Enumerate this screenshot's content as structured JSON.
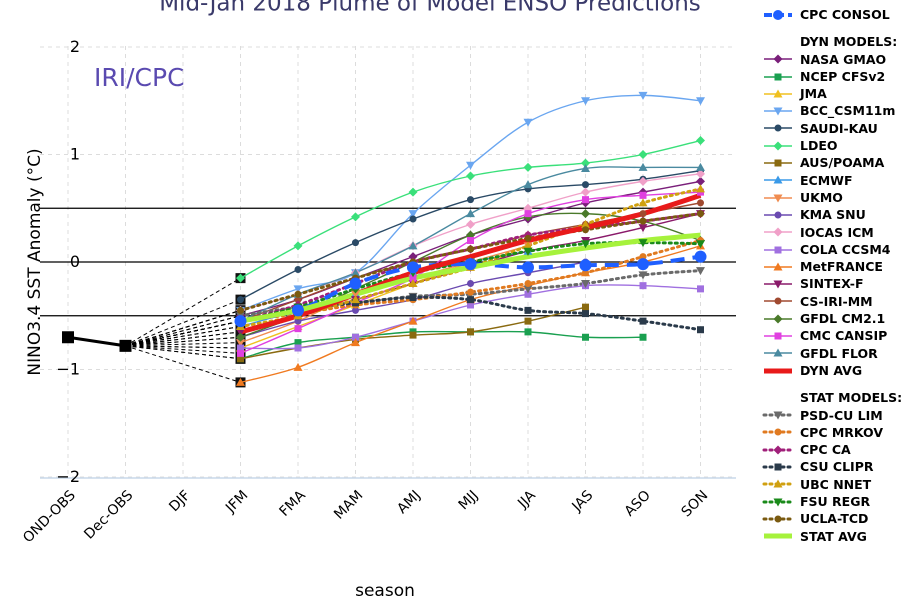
{
  "chart_data": {
    "type": "line",
    "title": "Mid-Jan 2018 Plume of Model ENSO Predictions",
    "watermark": "IRI/CPC",
    "xlabel": "season",
    "ylabel": "NINO3.4 SST Anomaly (°C)",
    "categories": [
      "OND-OBS",
      "Dec-OBS",
      "DJF",
      "JFM",
      "FMA",
      "MAM",
      "AMJ",
      "MJJ",
      "JJA",
      "JAS",
      "ASO",
      "SON"
    ],
    "ylim": [
      -2,
      2
    ],
    "yticks": [
      -2,
      -1,
      0,
      1,
      2
    ],
    "reference_lines": [
      0.5,
      0,
      -0.5
    ],
    "grid": true,
    "legend_position": "right",
    "observed": {
      "name": "OBS",
      "x": [
        "OND-OBS",
        "Dec-OBS"
      ],
      "values": [
        -0.7,
        -0.78
      ],
      "color": "#000000"
    },
    "legend_headers": {
      "dyn": "DYN MODELS:",
      "stat": "STAT MODELS:"
    },
    "series": [
      {
        "name": "CPC CONSOL",
        "group": "consol",
        "color": "#1f5fff",
        "style": "dashed",
        "marker": "circle",
        "x": [
          "JFM",
          "FMA",
          "MAM",
          "AMJ",
          "MJJ",
          "JJA",
          "JAS",
          "ASO",
          "SON"
        ],
        "values": [
          -0.55,
          -0.45,
          -0.2,
          -0.05,
          -0.02,
          -0.05,
          -0.03,
          -0.02,
          0.05
        ]
      },
      {
        "name": "NASA GMAO",
        "group": "dyn",
        "color": "#7a1f7a",
        "style": "solid",
        "marker": "diamond",
        "x": [
          "JFM",
          "FMA",
          "MAM",
          "AMJ",
          "MJJ",
          "JJA",
          "JAS",
          "ASO",
          "SON"
        ],
        "values": [
          -0.5,
          -0.35,
          -0.15,
          0.05,
          0.25,
          0.4,
          0.55,
          0.65,
          0.75
        ]
      },
      {
        "name": "NCEP CFSv2",
        "group": "dyn",
        "color": "#1aa050",
        "style": "solid",
        "marker": "square",
        "x": [
          "JFM",
          "FMA",
          "MAM",
          "AMJ",
          "MJJ",
          "JJA",
          "JAS",
          "ASO"
        ],
        "values": [
          -0.9,
          -0.75,
          -0.7,
          -0.65,
          -0.65,
          -0.65,
          -0.7,
          -0.7
        ]
      },
      {
        "name": "JMA",
        "group": "dyn",
        "color": "#f0c020",
        "style": "solid",
        "marker": "triangle-up",
        "x": [
          "JFM",
          "FMA",
          "MAM",
          "AMJ",
          "MJJ"
        ],
        "values": [
          -0.8,
          -0.6,
          -0.4,
          -0.2,
          0.0
        ]
      },
      {
        "name": "BCC_CSM11m",
        "group": "dyn",
        "color": "#6aa6f0",
        "style": "solid",
        "marker": "triangle-down",
        "x": [
          "JFM",
          "FMA",
          "MAM",
          "AMJ",
          "MJJ",
          "JJA",
          "JAS",
          "ASO",
          "SON"
        ],
        "values": [
          -0.45,
          -0.25,
          -0.1,
          0.45,
          0.9,
          1.3,
          1.5,
          1.55,
          1.5
        ]
      },
      {
        "name": "SAUDI-KAU",
        "group": "dyn",
        "color": "#2a4a66",
        "style": "solid",
        "marker": "circle",
        "x": [
          "JFM",
          "FMA",
          "MAM",
          "AMJ",
          "MJJ",
          "JJA",
          "JAS",
          "ASO",
          "SON"
        ],
        "values": [
          -0.35,
          -0.07,
          0.18,
          0.4,
          0.58,
          0.68,
          0.72,
          0.77,
          0.85
        ]
      },
      {
        "name": "LDEO",
        "group": "dyn",
        "color": "#3ae07a",
        "style": "solid",
        "marker": "diamond",
        "x": [
          "JFM",
          "FMA",
          "MAM",
          "AMJ",
          "MJJ",
          "JJA",
          "JAS",
          "ASO",
          "SON"
        ],
        "values": [
          -0.15,
          0.15,
          0.42,
          0.65,
          0.8,
          0.88,
          0.92,
          1.0,
          1.13
        ]
      },
      {
        "name": "AUS/POAMA",
        "group": "dyn",
        "color": "#8a6a10",
        "style": "solid",
        "marker": "square",
        "x": [
          "JFM",
          "FMA",
          "MAM",
          "AMJ",
          "MJJ",
          "JJA",
          "JAS"
        ],
        "values": [
          -0.9,
          -0.8,
          -0.72,
          -0.68,
          -0.65,
          -0.55,
          -0.42
        ]
      },
      {
        "name": "ECMWF",
        "group": "dyn",
        "color": "#3a9ae8",
        "style": "solid",
        "marker": "triangle-up",
        "x": [
          "JFM",
          "FMA",
          "MAM",
          "AMJ",
          "MJJ",
          "JJA"
        ],
        "values": [
          -0.6,
          -0.45,
          -0.3,
          -0.1,
          0.0,
          0.1
        ]
      },
      {
        "name": "UKMO",
        "group": "dyn",
        "color": "#f08c50",
        "style": "solid",
        "marker": "triangle-down",
        "x": [
          "JFM",
          "FMA",
          "MAM",
          "AMJ",
          "MJJ",
          "JJA"
        ],
        "values": [
          -0.75,
          -0.55,
          -0.3,
          -0.15,
          0.0,
          0.15
        ]
      },
      {
        "name": "KMA SNU",
        "group": "dyn",
        "color": "#6a4ab0",
        "style": "solid",
        "marker": "circle",
        "x": [
          "JFM",
          "FMA",
          "MAM",
          "AMJ",
          "MJJ",
          "JJA",
          "JAS"
        ],
        "values": [
          -0.7,
          -0.55,
          -0.45,
          -0.35,
          -0.2,
          -0.1,
          0.0
        ]
      },
      {
        "name": "IOCAS ICM",
        "group": "dyn",
        "color": "#f0a0c8",
        "style": "solid",
        "marker": "diamond",
        "x": [
          "JFM",
          "FMA",
          "MAM",
          "AMJ",
          "MJJ",
          "JJA",
          "JAS",
          "ASO",
          "SON"
        ],
        "values": [
          -0.45,
          -0.3,
          -0.1,
          0.15,
          0.35,
          0.5,
          0.65,
          0.75,
          0.82
        ]
      },
      {
        "name": "COLA CCSM4",
        "group": "dyn",
        "color": "#a070e0",
        "style": "solid",
        "marker": "square",
        "x": [
          "JFM",
          "FMA",
          "MAM",
          "AMJ",
          "MJJ",
          "JJA",
          "JAS",
          "ASO",
          "SON"
        ],
        "values": [
          -0.8,
          -0.8,
          -0.7,
          -0.55,
          -0.4,
          -0.3,
          -0.22,
          -0.22,
          -0.25
        ]
      },
      {
        "name": "MetFRANCE",
        "group": "dyn",
        "color": "#f07a20",
        "style": "solid",
        "marker": "triangle-up",
        "x": [
          "JFM",
          "FMA",
          "MAM",
          "AMJ",
          "MJJ",
          "JJA",
          "JAS",
          "ASO",
          "SON"
        ],
        "values": [
          -1.12,
          -0.98,
          -0.75,
          -0.55,
          -0.35,
          -0.22,
          -0.1,
          0.0,
          0.15
        ]
      },
      {
        "name": "SINTEX-F",
        "group": "dyn",
        "color": "#8a1a6a",
        "style": "solid",
        "marker": "triangle-down",
        "x": [
          "JFM",
          "FMA",
          "MAM",
          "AMJ",
          "MJJ",
          "JJA",
          "JAS",
          "ASO",
          "SON"
        ],
        "values": [
          -0.65,
          -0.5,
          -0.35,
          -0.2,
          -0.05,
          0.1,
          0.2,
          0.32,
          0.45
        ]
      },
      {
        "name": "CS-IRI-MM",
        "group": "dyn",
        "color": "#a04a30",
        "style": "solid",
        "marker": "circle",
        "x": [
          "JFM",
          "FMA",
          "MAM",
          "AMJ",
          "MJJ",
          "JJA",
          "JAS",
          "ASO",
          "SON"
        ],
        "values": [
          -0.55,
          -0.35,
          -0.15,
          0.0,
          0.12,
          0.25,
          0.35,
          0.45,
          0.55
        ]
      },
      {
        "name": "GFDL CM2.1",
        "group": "dyn",
        "color": "#4a7a2a",
        "style": "solid",
        "marker": "diamond",
        "x": [
          "JFM",
          "FMA",
          "MAM",
          "AMJ",
          "MJJ",
          "JJA",
          "JAS",
          "ASO",
          "SON"
        ],
        "values": [
          -0.7,
          -0.5,
          -0.25,
          0.0,
          0.25,
          0.42,
          0.45,
          0.38,
          0.2
        ]
      },
      {
        "name": "CMC CANSIP",
        "group": "dyn",
        "color": "#e040e0",
        "style": "solid",
        "marker": "square",
        "x": [
          "JFM",
          "FMA",
          "MAM",
          "AMJ",
          "MJJ",
          "JJA",
          "JAS",
          "ASO",
          "SON"
        ],
        "values": [
          -0.85,
          -0.62,
          -0.38,
          -0.15,
          0.2,
          0.45,
          0.58,
          0.62,
          0.65
        ]
      },
      {
        "name": "GFDL FLOR",
        "group": "dyn",
        "color": "#4a8aa0",
        "style": "solid",
        "marker": "triangle-up",
        "x": [
          "JFM",
          "FMA",
          "MAM",
          "AMJ",
          "MJJ",
          "JJA",
          "JAS",
          "ASO",
          "SON"
        ],
        "values": [
          -0.55,
          -0.3,
          -0.1,
          0.15,
          0.45,
          0.72,
          0.87,
          0.88,
          0.88
        ]
      },
      {
        "name": "DYN AVG",
        "group": "dyn",
        "color": "#e81a1a",
        "style": "thick",
        "marker": "none",
        "x": [
          "JFM",
          "FMA",
          "MAM",
          "AMJ",
          "MJJ",
          "JJA",
          "JAS",
          "ASO",
          "SON"
        ],
        "values": [
          -0.65,
          -0.5,
          -0.3,
          -0.1,
          0.05,
          0.2,
          0.32,
          0.45,
          0.62
        ]
      },
      {
        "name": "PSD-CU LIM",
        "group": "stat",
        "color": "#6a6a6a",
        "style": "dotted",
        "marker": "triangle-down",
        "x": [
          "JFM",
          "FMA",
          "MAM",
          "AMJ",
          "MJJ",
          "JJA",
          "JAS",
          "ASO",
          "SON"
        ],
        "values": [
          -0.5,
          -0.42,
          -0.38,
          -0.32,
          -0.3,
          -0.25,
          -0.2,
          -0.12,
          -0.08
        ]
      },
      {
        "name": "CPC MRKOV",
        "group": "stat",
        "color": "#e07a20",
        "style": "dotted",
        "marker": "circle",
        "x": [
          "JFM",
          "FMA",
          "MAM",
          "AMJ",
          "MJJ",
          "JJA",
          "JAS",
          "ASO",
          "SON"
        ],
        "values": [
          -0.55,
          -0.48,
          -0.4,
          -0.35,
          -0.28,
          -0.2,
          -0.1,
          0.05,
          0.2
        ]
      },
      {
        "name": "CPC CA",
        "group": "stat",
        "color": "#a0207a",
        "style": "dotted",
        "marker": "diamond",
        "x": [
          "JFM",
          "FMA",
          "MAM",
          "AMJ",
          "MJJ",
          "JJA",
          "JAS",
          "ASO",
          "SON"
        ],
        "values": [
          -0.55,
          -0.4,
          -0.2,
          0.0,
          0.12,
          0.25,
          0.32,
          0.38,
          0.45
        ]
      },
      {
        "name": "CSU CLIPR",
        "group": "stat",
        "color": "#2a3a4a",
        "style": "dotted",
        "marker": "square",
        "x": [
          "JFM",
          "FMA",
          "MAM",
          "AMJ",
          "MJJ",
          "JJA",
          "JAS",
          "ASO",
          "SON"
        ],
        "values": [
          -0.55,
          -0.45,
          -0.38,
          -0.33,
          -0.35,
          -0.45,
          -0.48,
          -0.55,
          -0.63
        ]
      },
      {
        "name": "UBC NNET",
        "group": "stat",
        "color": "#d0a010",
        "style": "dotted",
        "marker": "triangle-up",
        "x": [
          "JFM",
          "FMA",
          "MAM",
          "AMJ",
          "MJJ",
          "JJA",
          "JAS",
          "ASO",
          "SON"
        ],
        "values": [
          -0.6,
          -0.5,
          -0.35,
          -0.2,
          -0.05,
          0.15,
          0.35,
          0.55,
          0.68
        ]
      },
      {
        "name": "FSU REGR",
        "group": "stat",
        "color": "#1a8a1a",
        "style": "dotted",
        "marker": "triangle-down",
        "x": [
          "JFM",
          "FMA",
          "MAM",
          "AMJ",
          "MJJ",
          "JJA",
          "JAS",
          "ASO",
          "SON"
        ],
        "values": [
          -0.55,
          -0.42,
          -0.25,
          -0.1,
          0.0,
          0.1,
          0.17,
          0.18,
          0.17
        ]
      },
      {
        "name": "UCLA-TCD",
        "group": "stat",
        "color": "#7a5a10",
        "style": "dotted",
        "marker": "circle",
        "x": [
          "JFM",
          "FMA",
          "MAM",
          "AMJ",
          "MJJ",
          "JJA",
          "JAS",
          "ASO",
          "SON"
        ],
        "values": [
          -0.45,
          -0.3,
          -0.15,
          0.0,
          0.12,
          0.22,
          0.3,
          0.38,
          0.45
        ]
      },
      {
        "name": "STAT AVG",
        "group": "stat",
        "color": "#a6f23c",
        "style": "thick",
        "marker": "none",
        "x": [
          "JFM",
          "FMA",
          "MAM",
          "AMJ",
          "MJJ",
          "JJA",
          "JAS",
          "ASO",
          "SON"
        ],
        "values": [
          -0.55,
          -0.45,
          -0.3,
          -0.15,
          -0.05,
          0.05,
          0.13,
          0.2,
          0.25
        ]
      }
    ]
  }
}
